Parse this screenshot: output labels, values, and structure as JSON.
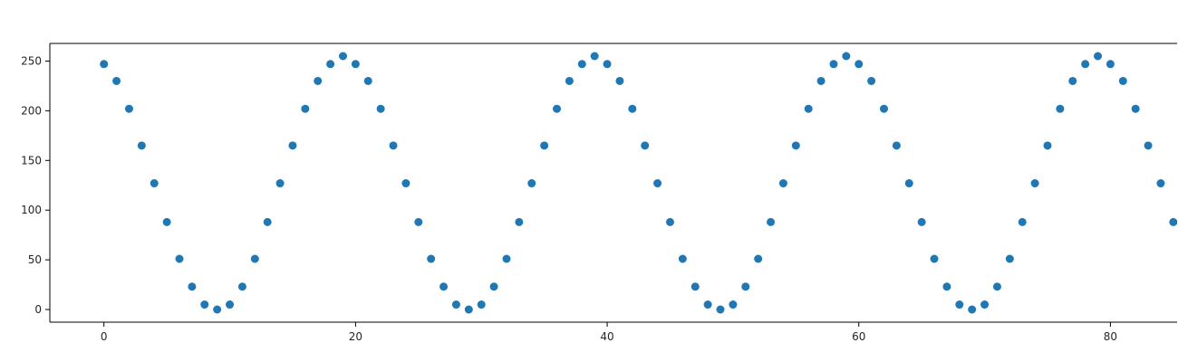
{
  "chart_data": {
    "type": "scatter",
    "title": "",
    "xlabel": "",
    "ylabel": "",
    "xlim": [
      -4.3,
      85.3
    ],
    "ylim": [
      -12.75,
      267.75
    ],
    "xticks": [
      0,
      20,
      40,
      60,
      80
    ],
    "yticks": [
      0,
      50,
      100,
      150,
      200,
      250
    ],
    "grid": false,
    "marker_color": "#1f77b4",
    "series": [
      {
        "x": [
          0,
          1,
          2,
          3,
          4,
          5,
          6,
          7,
          8,
          9,
          10,
          11,
          12,
          13,
          14,
          15,
          16,
          17,
          18,
          19,
          20,
          21,
          22,
          23,
          24,
          25,
          26,
          27,
          28,
          29,
          30,
          31,
          32,
          33,
          34,
          35,
          36,
          37,
          38,
          39,
          40,
          41,
          42,
          43,
          44,
          45,
          46,
          47,
          48,
          49,
          50,
          51,
          52,
          53,
          54,
          55,
          56,
          57,
          58,
          59,
          60,
          61,
          62,
          63,
          64,
          65,
          66,
          67,
          68,
          69,
          70,
          71,
          72,
          73,
          74,
          75,
          76,
          77,
          78,
          79,
          80,
          81,
          82,
          83,
          84,
          85
        ],
        "y": [
          247,
          230,
          202,
          165,
          127,
          88,
          51,
          23,
          5,
          0,
          5,
          23,
          51,
          88,
          127,
          165,
          202,
          230,
          247,
          255,
          247,
          230,
          202,
          165,
          127,
          88,
          51,
          23,
          5,
          0,
          5,
          23,
          51,
          88,
          127,
          165,
          202,
          230,
          247,
          255,
          247,
          230,
          202,
          165,
          127,
          88,
          51,
          23,
          5,
          0,
          5,
          23,
          51,
          88,
          127,
          165,
          202,
          230,
          247,
          255,
          247,
          230,
          202,
          165,
          127,
          88,
          51,
          23,
          5,
          0,
          5,
          23,
          51,
          88,
          127,
          165,
          202,
          230,
          247,
          255,
          247,
          230,
          202,
          165,
          127,
          88
        ]
      }
    ]
  }
}
